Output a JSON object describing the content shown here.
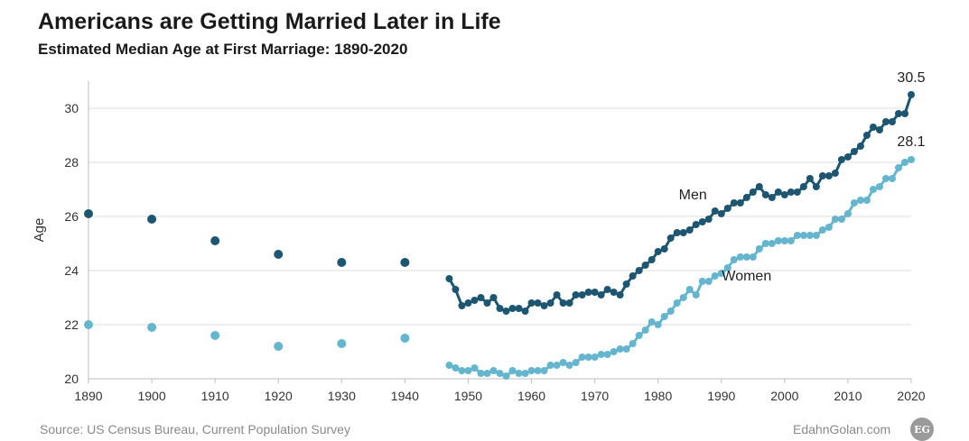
{
  "header": {
    "title": "Americans are Getting Married Later in Life",
    "subtitle": "Estimated Median Age at First Marriage: 1890-2020"
  },
  "footer": {
    "source": "Source: US Census Bureau, Current Population Survey",
    "site": "EdahnGolan.com",
    "logo_text": "EG"
  },
  "colors": {
    "men": "#1b5673",
    "women": "#63b6d0",
    "grid": "#dcdcdc",
    "axis": "#bdbdbd"
  },
  "chart_data": {
    "type": "line",
    "title": "Americans are Getting Married Later in Life",
    "subtitle": "Estimated Median Age at First Marriage: 1890-2020",
    "xlabel": "",
    "ylabel": "Age",
    "xlim": [
      1890,
      2020
    ],
    "ylim": [
      20,
      31
    ],
    "xticks": [
      1890,
      1900,
      1910,
      1920,
      1930,
      1940,
      1950,
      1960,
      1970,
      1980,
      1990,
      2000,
      2010,
      2020
    ],
    "yticks": [
      20,
      22,
      24,
      26,
      28,
      30
    ],
    "grid": true,
    "legend": "none",
    "annotations": [
      {
        "text": "30.5",
        "x": 2020,
        "y": 30.5
      },
      {
        "text": "28.1",
        "x": 2020,
        "y": 28.1
      }
    ],
    "series": [
      {
        "name": "Men",
        "decennial_points": [
          [
            1890,
            26.1
          ],
          [
            1900,
            25.9
          ],
          [
            1910,
            25.1
          ],
          [
            1920,
            24.6
          ],
          [
            1930,
            24.3
          ],
          [
            1940,
            24.3
          ]
        ],
        "annual_points": [
          [
            1947,
            23.7
          ],
          [
            1948,
            23.3
          ],
          [
            1949,
            22.7
          ],
          [
            1950,
            22.8
          ],
          [
            1951,
            22.9
          ],
          [
            1952,
            23.0
          ],
          [
            1953,
            22.8
          ],
          [
            1954,
            23.0
          ],
          [
            1955,
            22.6
          ],
          [
            1956,
            22.5
          ],
          [
            1957,
            22.6
          ],
          [
            1958,
            22.6
          ],
          [
            1959,
            22.5
          ],
          [
            1960,
            22.8
          ],
          [
            1961,
            22.8
          ],
          [
            1962,
            22.7
          ],
          [
            1963,
            22.8
          ],
          [
            1964,
            23.1
          ],
          [
            1965,
            22.8
          ],
          [
            1966,
            22.8
          ],
          [
            1967,
            23.1
          ],
          [
            1968,
            23.1
          ],
          [
            1969,
            23.2
          ],
          [
            1970,
            23.2
          ],
          [
            1971,
            23.1
          ],
          [
            1972,
            23.3
          ],
          [
            1973,
            23.2
          ],
          [
            1974,
            23.1
          ],
          [
            1975,
            23.5
          ],
          [
            1976,
            23.8
          ],
          [
            1977,
            24.0
          ],
          [
            1978,
            24.2
          ],
          [
            1979,
            24.4
          ],
          [
            1980,
            24.7
          ],
          [
            1981,
            24.8
          ],
          [
            1982,
            25.2
          ],
          [
            1983,
            25.4
          ],
          [
            1984,
            25.4
          ],
          [
            1985,
            25.5
          ],
          [
            1986,
            25.7
          ],
          [
            1987,
            25.8
          ],
          [
            1988,
            25.9
          ],
          [
            1989,
            26.2
          ],
          [
            1990,
            26.1
          ],
          [
            1991,
            26.3
          ],
          [
            1992,
            26.5
          ],
          [
            1993,
            26.5
          ],
          [
            1994,
            26.7
          ],
          [
            1995,
            26.9
          ],
          [
            1996,
            27.1
          ],
          [
            1997,
            26.8
          ],
          [
            1998,
            26.7
          ],
          [
            1999,
            26.9
          ],
          [
            2000,
            26.8
          ],
          [
            2001,
            26.9
          ],
          [
            2002,
            26.9
          ],
          [
            2003,
            27.1
          ],
          [
            2004,
            27.4
          ],
          [
            2005,
            27.1
          ],
          [
            2006,
            27.5
          ],
          [
            2007,
            27.5
          ],
          [
            2008,
            27.6
          ],
          [
            2009,
            28.1
          ],
          [
            2010,
            28.2
          ],
          [
            2011,
            28.4
          ],
          [
            2012,
            28.6
          ],
          [
            2013,
            29.0
          ],
          [
            2014,
            29.3
          ],
          [
            2015,
            29.2
          ],
          [
            2016,
            29.5
          ],
          [
            2017,
            29.5
          ],
          [
            2018,
            29.8
          ],
          [
            2019,
            29.8
          ],
          [
            2020,
            30.5
          ]
        ],
        "label": "Men"
      },
      {
        "name": "Women",
        "decennial_points": [
          [
            1890,
            22.0
          ],
          [
            1900,
            21.9
          ],
          [
            1910,
            21.6
          ],
          [
            1920,
            21.2
          ],
          [
            1930,
            21.3
          ],
          [
            1940,
            21.5
          ]
        ],
        "annual_points": [
          [
            1947,
            20.5
          ],
          [
            1948,
            20.4
          ],
          [
            1949,
            20.3
          ],
          [
            1950,
            20.3
          ],
          [
            1951,
            20.4
          ],
          [
            1952,
            20.2
          ],
          [
            1953,
            20.2
          ],
          [
            1954,
            20.3
          ],
          [
            1955,
            20.2
          ],
          [
            1956,
            20.1
          ],
          [
            1957,
            20.3
          ],
          [
            1958,
            20.2
          ],
          [
            1959,
            20.2
          ],
          [
            1960,
            20.3
          ],
          [
            1961,
            20.3
          ],
          [
            1962,
            20.3
          ],
          [
            1963,
            20.5
          ],
          [
            1964,
            20.5
          ],
          [
            1965,
            20.6
          ],
          [
            1966,
            20.5
          ],
          [
            1967,
            20.6
          ],
          [
            1968,
            20.8
          ],
          [
            1969,
            20.8
          ],
          [
            1970,
            20.8
          ],
          [
            1971,
            20.9
          ],
          [
            1972,
            20.9
          ],
          [
            1973,
            21.0
          ],
          [
            1974,
            21.1
          ],
          [
            1975,
            21.1
          ],
          [
            1976,
            21.3
          ],
          [
            1977,
            21.6
          ],
          [
            1978,
            21.8
          ],
          [
            1979,
            22.1
          ],
          [
            1980,
            22.0
          ],
          [
            1981,
            22.3
          ],
          [
            1982,
            22.5
          ],
          [
            1983,
            22.8
          ],
          [
            1984,
            23.0
          ],
          [
            1985,
            23.3
          ],
          [
            1986,
            23.1
          ],
          [
            1987,
            23.6
          ],
          [
            1988,
            23.6
          ],
          [
            1989,
            23.8
          ],
          [
            1990,
            23.9
          ],
          [
            1991,
            24.1
          ],
          [
            1992,
            24.4
          ],
          [
            1993,
            24.5
          ],
          [
            1994,
            24.5
          ],
          [
            1995,
            24.5
          ],
          [
            1996,
            24.8
          ],
          [
            1997,
            25.0
          ],
          [
            1998,
            25.0
          ],
          [
            1999,
            25.1
          ],
          [
            2000,
            25.1
          ],
          [
            2001,
            25.1
          ],
          [
            2002,
            25.3
          ],
          [
            2003,
            25.3
          ],
          [
            2004,
            25.3
          ],
          [
            2005,
            25.3
          ],
          [
            2006,
            25.5
          ],
          [
            2007,
            25.6
          ],
          [
            2008,
            25.9
          ],
          [
            2009,
            25.9
          ],
          [
            2010,
            26.1
          ],
          [
            2011,
            26.5
          ],
          [
            2012,
            26.6
          ],
          [
            2013,
            26.6
          ],
          [
            2014,
            27.0
          ],
          [
            2015,
            27.1
          ],
          [
            2016,
            27.4
          ],
          [
            2017,
            27.4
          ],
          [
            2018,
            27.8
          ],
          [
            2019,
            28.0
          ],
          [
            2020,
            28.1
          ]
        ],
        "label": "Women"
      }
    ]
  }
}
